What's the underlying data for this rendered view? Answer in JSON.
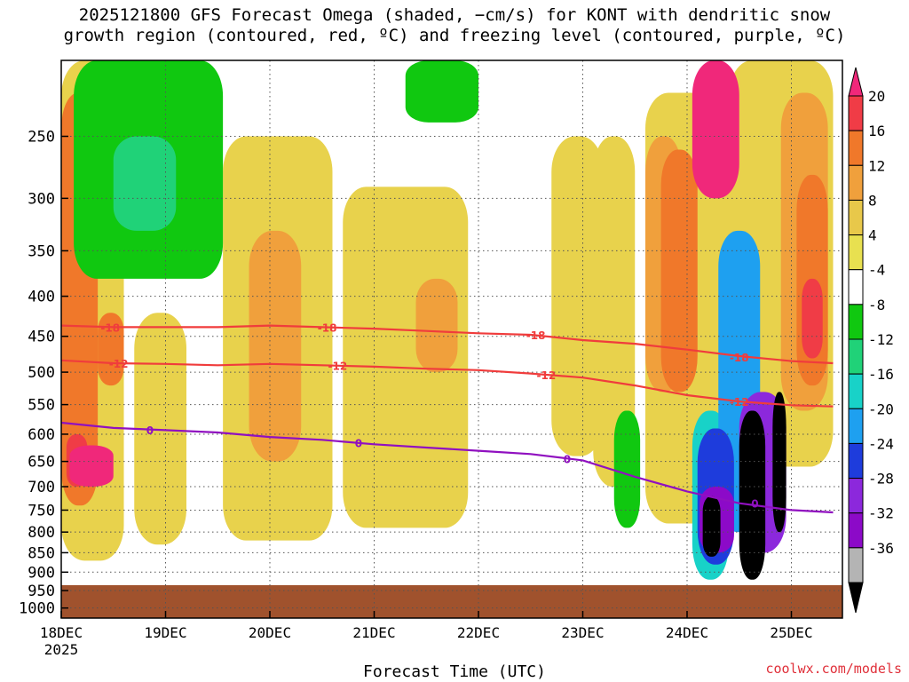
{
  "title": {
    "line1": "2025121800 GFS Forecast Omega (shaded, −cm/s) for KONT with dendritic snow",
    "line2": "growth region (contoured, red, ºC) and freezing level (contoured, purple, ºC)"
  },
  "credit": "coolwx.com/models",
  "chart_data": {
    "type": "heatmap",
    "xlabel": "Forecast Time (UTC)",
    "ylabel": "",
    "x_ticks": [
      "18DEC",
      "19DEC",
      "20DEC",
      "21DEC",
      "22DEC",
      "23DEC",
      "24DEC",
      "25DEC"
    ],
    "x_year": "2025",
    "xlim_days": [
      0,
      7.4
    ],
    "y_ticks": [
      250,
      300,
      350,
      400,
      450,
      500,
      550,
      600,
      650,
      700,
      750,
      800,
      850,
      900,
      950,
      1000
    ],
    "ylim_hpa": [
      1030,
      200
    ],
    "surface_pressure_hpa": 935,
    "colorbar": {
      "labels": [
        "20",
        "16",
        "12",
        "8",
        "4",
        "-4",
        "-8",
        "-12",
        "-16",
        "-20",
        "-24",
        "-28",
        "-32",
        "-36"
      ],
      "colors": [
        "#f0287a",
        "#f03c46",
        "#f0782a",
        "#f0a03c",
        "#e8c84a",
        "#e8e050",
        "#ffffff",
        "#10c810",
        "#20d278",
        "#18d2c8",
        "#1ea0f0",
        "#1e3cdc",
        "#8c28dc",
        "#8c0ac8",
        "#b4b4b4",
        "#000000"
      ]
    },
    "dendritic_contours": [
      {
        "label": "-18",
        "points": [
          [
            0,
            436
          ],
          [
            0.5,
            438
          ],
          [
            1,
            438
          ],
          [
            1.5,
            438
          ],
          [
            2,
            436
          ],
          [
            2.5,
            438
          ],
          [
            3,
            440
          ],
          [
            3.5,
            443
          ],
          [
            4,
            446
          ],
          [
            4.5,
            448
          ],
          [
            5,
            455
          ],
          [
            5.5,
            460
          ],
          [
            6,
            468
          ],
          [
            6.5,
            477
          ],
          [
            7,
            484
          ],
          [
            7.4,
            487
          ]
        ]
      },
      {
        "label": "-12",
        "points": [
          [
            0,
            483
          ],
          [
            0.5,
            487
          ],
          [
            1,
            488
          ],
          [
            1.5,
            490
          ],
          [
            2,
            488
          ],
          [
            2.5,
            490
          ],
          [
            3,
            492
          ],
          [
            3.5,
            495
          ],
          [
            4,
            497
          ],
          [
            4.5,
            502
          ],
          [
            5,
            508
          ],
          [
            5.5,
            520
          ],
          [
            6,
            535
          ],
          [
            6.5,
            545
          ],
          [
            7,
            551
          ],
          [
            7.4,
            553
          ]
        ]
      }
    ],
    "freezing_level_contours": [
      {
        "label": "0",
        "points": [
          [
            0,
            580
          ],
          [
            0.5,
            589
          ],
          [
            1,
            593
          ],
          [
            1.5,
            597
          ],
          [
            2,
            605
          ],
          [
            2.5,
            610
          ],
          [
            3,
            618
          ],
          [
            3.5,
            624
          ],
          [
            4,
            630
          ],
          [
            4.5,
            636
          ],
          [
            5,
            648
          ],
          [
            5.5,
            680
          ],
          [
            6,
            710
          ],
          [
            6.5,
            735
          ],
          [
            7,
            750
          ],
          [
            7.4,
            755
          ]
        ]
      }
    ],
    "contour_labels": [
      {
        "text": "-18",
        "x": 0.47,
        "p": 438
      },
      {
        "text": "-18",
        "x": 2.55,
        "p": 438
      },
      {
        "text": "-18",
        "x": 4.55,
        "p": 448
      },
      {
        "text": "-18",
        "x": 6.5,
        "p": 478
      },
      {
        "text": "-12",
        "x": 0.55,
        "p": 487
      },
      {
        "text": "-12",
        "x": 2.65,
        "p": 490
      },
      {
        "text": "-12",
        "x": 4.65,
        "p": 504
      },
      {
        "text": "-12",
        "x": 6.5,
        "p": 545
      },
      {
        "text": "0",
        "x": 0.85,
        "p": 592
      },
      {
        "text": "0",
        "x": 2.85,
        "p": 615
      },
      {
        "text": "0",
        "x": 4.85,
        "p": 645
      },
      {
        "text": "0",
        "x": 6.65,
        "p": 735
      }
    ],
    "omega_regions": [
      {
        "level": "4",
        "x": [
          0.0,
          0.6
        ],
        "p": [
          200,
          870
        ]
      },
      {
        "level": "4",
        "x": [
          0.7,
          1.2
        ],
        "p": [
          420,
          830
        ]
      },
      {
        "level": "4",
        "x": [
          1.55,
          2.6
        ],
        "p": [
          250,
          820
        ]
      },
      {
        "level": "4",
        "x": [
          2.7,
          3.9
        ],
        "p": [
          290,
          790
        ]
      },
      {
        "level": "4",
        "x": [
          4.7,
          5.2
        ],
        "p": [
          250,
          640
        ]
      },
      {
        "level": "4",
        "x": [
          5.1,
          5.5
        ],
        "p": [
          250,
          700
        ]
      },
      {
        "level": "4",
        "x": [
          5.6,
          6.5
        ],
        "p": [
          220,
          780
        ]
      },
      {
        "level": "4",
        "x": [
          6.4,
          7.4
        ],
        "p": [
          200,
          660
        ]
      },
      {
        "level": "8",
        "x": [
          1.8,
          2.3
        ],
        "p": [
          330,
          650
        ]
      },
      {
        "level": "8",
        "x": [
          3.4,
          3.8
        ],
        "p": [
          380,
          500
        ]
      },
      {
        "level": "8",
        "x": [
          5.6,
          5.95
        ],
        "p": [
          250,
          530
        ]
      },
      {
        "level": "8",
        "x": [
          6.9,
          7.35
        ],
        "p": [
          220,
          560
        ]
      },
      {
        "level": "12",
        "x": [
          0.0,
          0.35
        ],
        "p": [
          220,
          740
        ]
      },
      {
        "level": "12",
        "x": [
          0.35,
          0.6
        ],
        "p": [
          420,
          520
        ]
      },
      {
        "level": "12",
        "x": [
          5.75,
          6.1
        ],
        "p": [
          260,
          530
        ]
      },
      {
        "level": "12",
        "x": [
          7.05,
          7.35
        ],
        "p": [
          280,
          520
        ]
      },
      {
        "level": "16",
        "x": [
          0.05,
          0.25
        ],
        "p": [
          600,
          700
        ]
      },
      {
        "level": "16",
        "x": [
          7.1,
          7.3
        ],
        "p": [
          380,
          480
        ]
      },
      {
        "level": "20",
        "x": [
          0.08,
          0.5
        ],
        "p": [
          620,
          700
        ]
      },
      {
        "level": "20",
        "x": [
          6.05,
          6.5
        ],
        "p": [
          200,
          300
        ]
      },
      {
        "level": "-8",
        "x": [
          0.12,
          1.55
        ],
        "p": [
          200,
          380
        ]
      },
      {
        "level": "-8",
        "x": [
          3.3,
          4.0
        ],
        "p": [
          200,
          240
        ]
      },
      {
        "level": "-8",
        "x": [
          5.3,
          5.55
        ],
        "p": [
          560,
          790
        ]
      },
      {
        "level": "-12",
        "x": [
          0.5,
          1.1
        ],
        "p": [
          250,
          330
        ]
      },
      {
        "level": "-16",
        "x": [
          6.05,
          6.4
        ],
        "p": [
          560,
          920
        ]
      },
      {
        "level": "-20",
        "x": [
          6.3,
          6.7
        ],
        "p": [
          330,
          800
        ]
      },
      {
        "level": "-24",
        "x": [
          6.1,
          6.45
        ],
        "p": [
          590,
          880
        ]
      },
      {
        "level": "-28",
        "x": [
          6.5,
          6.95
        ],
        "p": [
          530,
          850
        ]
      },
      {
        "level": "-32",
        "x": [
          6.12,
          6.45
        ],
        "p": [
          700,
          850
        ]
      },
      {
        "level": "-36",
        "x": [
          6.15,
          6.32
        ],
        "p": [
          720,
          860
        ]
      },
      {
        "level": "-36",
        "x": [
          6.5,
          6.75
        ],
        "p": [
          560,
          920
        ]
      },
      {
        "level": "-36",
        "x": [
          6.82,
          6.95
        ],
        "p": [
          530,
          800
        ]
      }
    ]
  }
}
